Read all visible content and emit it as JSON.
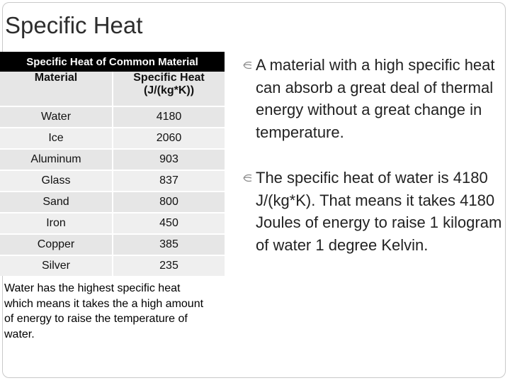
{
  "title": "Specific Heat",
  "table": {
    "caption": "Specific Heat of Common Material",
    "headers": [
      "Material",
      "Specific Heat (J/(kg*K))"
    ],
    "rows": [
      {
        "material": "Water",
        "value": "4180"
      },
      {
        "material": "Ice",
        "value": "2060"
      },
      {
        "material": "Aluminum",
        "value": "903"
      },
      {
        "material": "Glass",
        "value": "837"
      },
      {
        "material": "Sand",
        "value": "800"
      },
      {
        "material": "Iron",
        "value": "450"
      },
      {
        "material": "Copper",
        "value": "385"
      },
      {
        "material": "Silver",
        "value": "235"
      }
    ]
  },
  "note": "Water has the highest specific heat which means it takes the a high amount of energy to raise the temperature of water.",
  "bullets": [
    "A material with a high specific heat can absorb a great deal of thermal energy without a great change in temperature.",
    "The specific heat of water is 4180 J/(kg*K). That means it takes 4180 Joules of energy to raise 1 kilogram of water 1 degree Kelvin."
  ]
}
